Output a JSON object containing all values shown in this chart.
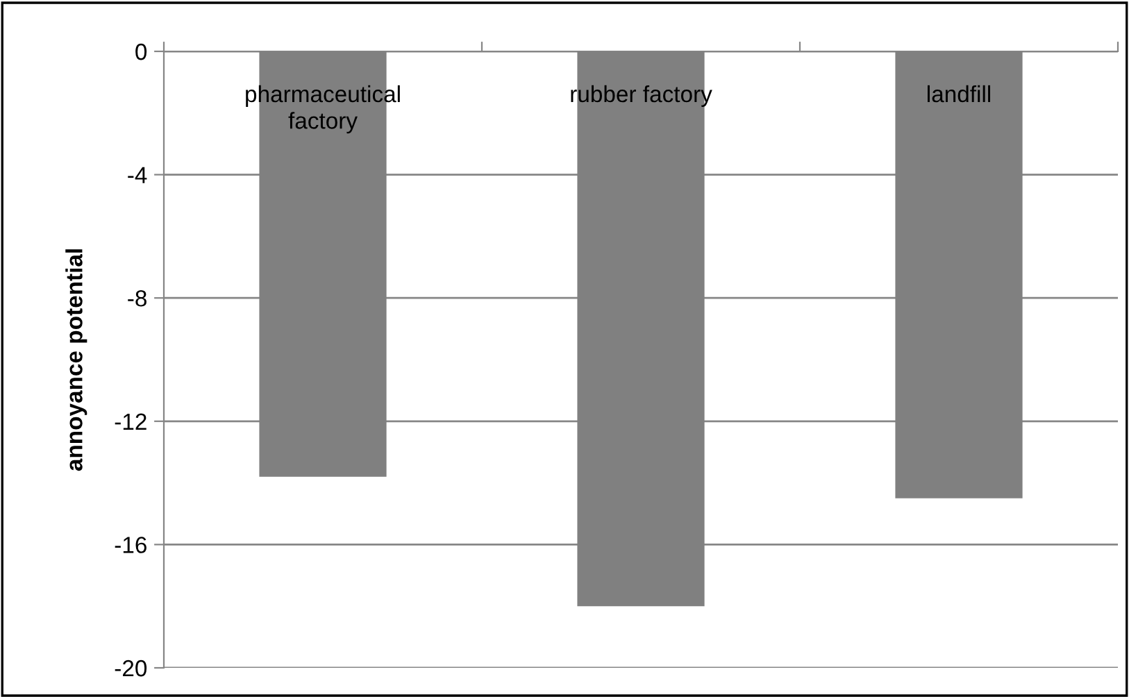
{
  "chart_data": {
    "type": "bar",
    "ylabel": "annoyance potential",
    "categories": [
      "pharmaceutical\nfactory",
      "rubber factory",
      "landfill"
    ],
    "values": [
      -13.8,
      -18.0,
      -14.5
    ],
    "color": "#808080",
    "ylim": [
      -20,
      0
    ],
    "yticks": [
      -20,
      -16,
      -12,
      -8,
      -4,
      0
    ],
    "grid": "y"
  }
}
